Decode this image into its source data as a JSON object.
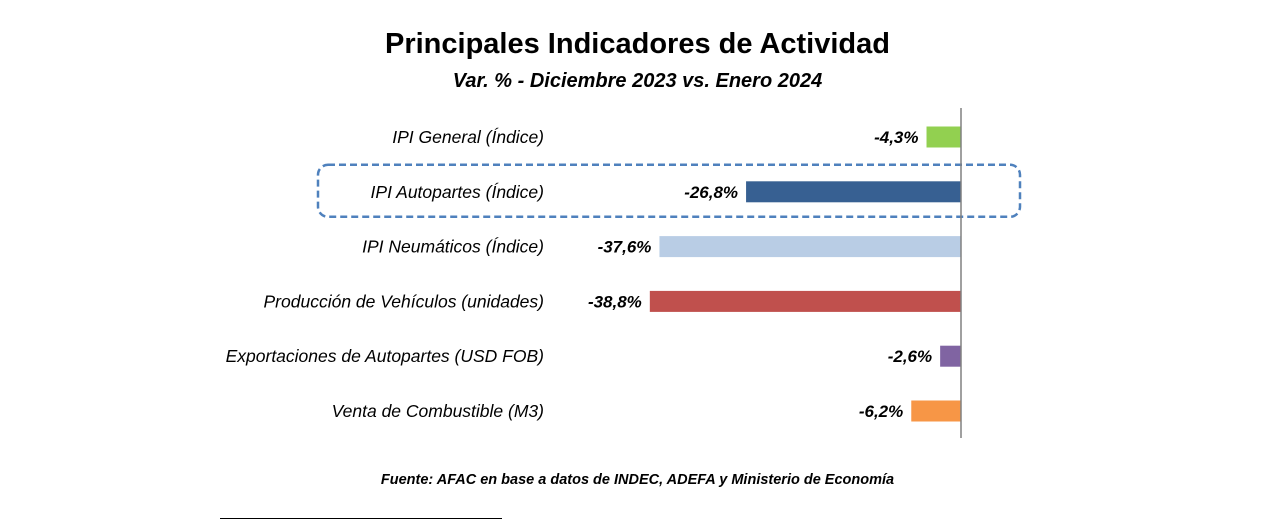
{
  "chart_data": {
    "type": "bar",
    "orientation": "horizontal",
    "title": "Principales Indicadores de Actividad",
    "subtitle": "Var. % - Diciembre 2023 vs. Enero 2024",
    "categories": [
      "IPI General (Índice)",
      "IPI Autopartes (Índice)",
      "IPI Neumáticos (Índice)",
      "Producción de Vehículos (unidades)",
      "Exportaciones de Autopartes (USD FOB)",
      "Venta de Combustible (M3)"
    ],
    "values": [
      -4.3,
      -26.8,
      -37.6,
      -38.8,
      -2.6,
      -6.2
    ],
    "value_labels": [
      "-4,3%",
      "-26,8%",
      "-37,6%",
      "-38,8%",
      "-2,6%",
      "-6,2%"
    ],
    "colors": [
      "#92D050",
      "#376092",
      "#B9CDE5",
      "#C0504D",
      "#8064A2",
      "#F79646"
    ],
    "highlighted_category": "IPI Autopartes (Índice)",
    "highlight_color": "#4F81BD",
    "xlim": [
      -40,
      0
    ],
    "grid": false,
    "legend": "none",
    "source": "Fuente: AFAC en base a datos de INDEC, ADEFA y Ministerio de Economía"
  }
}
